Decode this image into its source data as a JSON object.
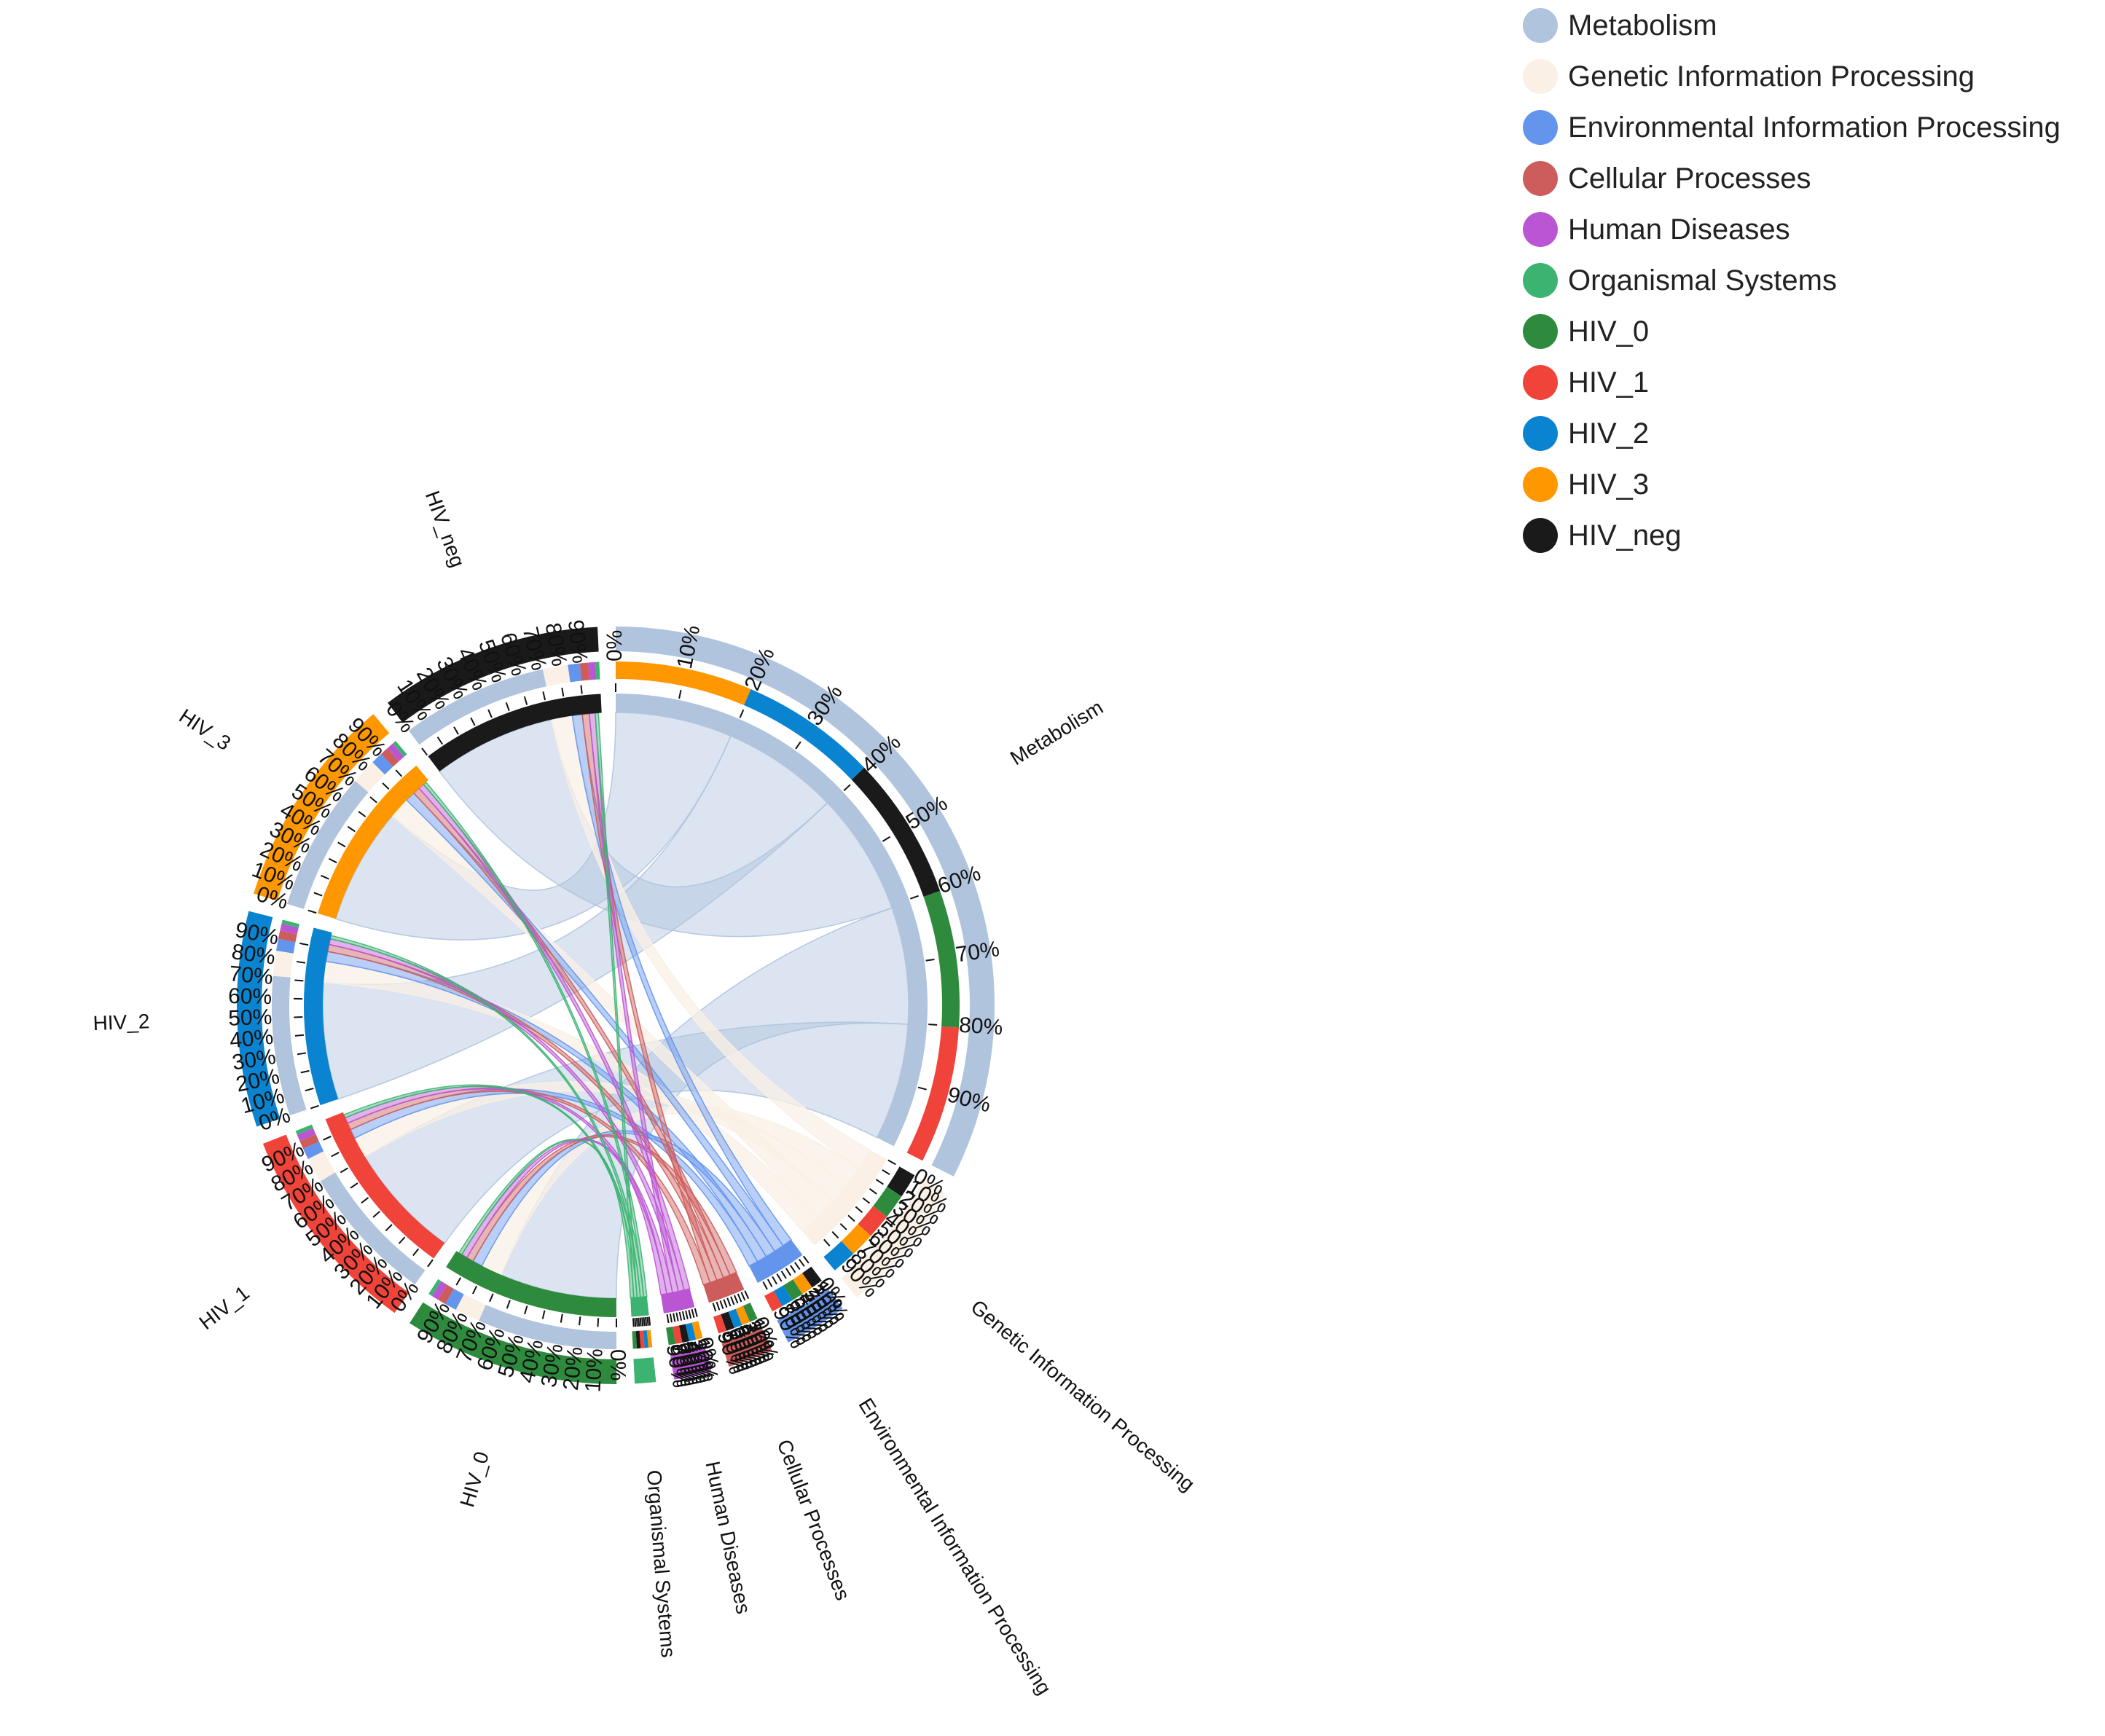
{
  "colors": {
    "Metabolism": "#b0c4de",
    "Genetic Information Processing": "#faf0e6",
    "Environmental Information Processing": "#6495ed",
    "Cellular Processes": "#cd5c5c",
    "Human Diseases": "#ba55d3",
    "Organismal Systems": "#3cb371",
    "HIV_0": "#2e8b3e",
    "HIV_1": "#f0433a",
    "HIV_2": "#0a84d0",
    "HIV_3": "#ff9800",
    "HIV_neg": "#1a1a1a"
  },
  "legend": [
    "Metabolism",
    "Genetic Information Processing",
    "Environmental Information Processing",
    "Cellular Processes",
    "Human Diseases",
    "Organismal Systems",
    "HIV_0",
    "HIV_1",
    "HIV_2",
    "HIV_3",
    "HIV_neg"
  ],
  "chart_data": {
    "type": "chord",
    "ticks": [
      "0%",
      "10%",
      "20%",
      "30%",
      "40%",
      "50%",
      "60%",
      "70%",
      "80%",
      "90%"
    ],
    "segments": [
      {
        "name": "Metabolism",
        "kind": "pathway",
        "value": 5.05,
        "composition": [
          {
            "group": "HIV_3",
            "value": 1.0
          },
          {
            "group": "HIV_2",
            "value": 1.0
          },
          {
            "group": "HIV_neg",
            "value": 1.05
          },
          {
            "group": "HIV_0",
            "value": 1.0
          },
          {
            "group": "HIV_1",
            "value": 1.0
          }
        ]
      },
      {
        "name": "Genetic Information Processing",
        "kind": "pathway",
        "value": 0.9,
        "composition": [
          {
            "group": "HIV_neg",
            "value": 0.18
          },
          {
            "group": "HIV_0",
            "value": 0.18
          },
          {
            "group": "HIV_1",
            "value": 0.18
          },
          {
            "group": "HIV_3",
            "value": 0.18
          },
          {
            "group": "HIV_2",
            "value": 0.18
          }
        ]
      },
      {
        "name": "Environmental Information Processing",
        "kind": "pathway",
        "value": 0.42,
        "composition": [
          {
            "group": "HIV_neg",
            "value": 0.085
          },
          {
            "group": "HIV_3",
            "value": 0.085
          },
          {
            "group": "HIV_0",
            "value": 0.085
          },
          {
            "group": "HIV_2",
            "value": 0.085
          },
          {
            "group": "HIV_1",
            "value": 0.08
          }
        ]
      },
      {
        "name": "Cellular Processes",
        "kind": "pathway",
        "value": 0.3,
        "composition": [
          {
            "group": "HIV_0",
            "value": 0.06
          },
          {
            "group": "HIV_3",
            "value": 0.06
          },
          {
            "group": "HIV_2",
            "value": 0.06
          },
          {
            "group": "HIV_neg",
            "value": 0.06
          },
          {
            "group": "HIV_1",
            "value": 0.06
          }
        ]
      },
      {
        "name": "Human Diseases",
        "kind": "pathway",
        "value": 0.25,
        "composition": [
          {
            "group": "HIV_3",
            "value": 0.05
          },
          {
            "group": "HIV_2",
            "value": 0.05
          },
          {
            "group": "HIV_neg",
            "value": 0.05
          },
          {
            "group": "HIV_1",
            "value": 0.05
          },
          {
            "group": "HIV_0",
            "value": 0.05
          }
        ]
      },
      {
        "name": "Organismal Systems",
        "kind": "pathway",
        "value": 0.14,
        "composition": [
          {
            "group": "HIV_3",
            "value": 0.028
          },
          {
            "group": "HIV_2",
            "value": 0.028
          },
          {
            "group": "HIV_1",
            "value": 0.028
          },
          {
            "group": "HIV_neg",
            "value": 0.028
          },
          {
            "group": "HIV_0",
            "value": 0.028
          }
        ]
      },
      {
        "name": "HIV_0",
        "kind": "group",
        "value": 1.43,
        "composition": [
          {
            "pathway": "Metabolism",
            "value": 1.0
          },
          {
            "pathway": "Genetic Information Processing",
            "value": 0.18
          },
          {
            "pathway": "Environmental Information Processing",
            "value": 0.085
          },
          {
            "pathway": "Cellular Processes",
            "value": 0.06
          },
          {
            "pathway": "Human Diseases",
            "value": 0.05
          },
          {
            "pathway": "Organismal Systems",
            "value": 0.028
          }
        ]
      },
      {
        "name": "HIV_1",
        "kind": "group",
        "value": 1.42,
        "composition": [
          {
            "pathway": "Metabolism",
            "value": 1.0
          },
          {
            "pathway": "Genetic Information Processing",
            "value": 0.18
          },
          {
            "pathway": "Environmental Information Processing",
            "value": 0.08
          },
          {
            "pathway": "Cellular Processes",
            "value": 0.06
          },
          {
            "pathway": "Human Diseases",
            "value": 0.05
          },
          {
            "pathway": "Organismal Systems",
            "value": 0.028
          }
        ]
      },
      {
        "name": "HIV_2",
        "kind": "group",
        "value": 1.43,
        "composition": [
          {
            "pathway": "Metabolism",
            "value": 1.0
          },
          {
            "pathway": "Genetic Information Processing",
            "value": 0.18
          },
          {
            "pathway": "Environmental Information Processing",
            "value": 0.085
          },
          {
            "pathway": "Cellular Processes",
            "value": 0.06
          },
          {
            "pathway": "Human Diseases",
            "value": 0.05
          },
          {
            "pathway": "Organismal Systems",
            "value": 0.028
          }
        ]
      },
      {
        "name": "HIV_3",
        "kind": "group",
        "value": 1.43,
        "composition": [
          {
            "pathway": "Metabolism",
            "value": 1.0
          },
          {
            "pathway": "Genetic Information Processing",
            "value": 0.18
          },
          {
            "pathway": "Environmental Information Processing",
            "value": 0.085
          },
          {
            "pathway": "Cellular Processes",
            "value": 0.06
          },
          {
            "pathway": "Human Diseases",
            "value": 0.05
          },
          {
            "pathway": "Organismal Systems",
            "value": 0.028
          }
        ]
      },
      {
        "name": "HIV_neg",
        "kind": "group",
        "value": 1.48,
        "composition": [
          {
            "pathway": "Metabolism",
            "value": 1.05
          },
          {
            "pathway": "Genetic Information Processing",
            "value": 0.18
          },
          {
            "pathway": "Environmental Information Processing",
            "value": 0.085
          },
          {
            "pathway": "Cellular Processes",
            "value": 0.06
          },
          {
            "pathway": "Human Diseases",
            "value": 0.05
          },
          {
            "pathway": "Organismal Systems",
            "value": 0.028
          }
        ]
      }
    ]
  }
}
